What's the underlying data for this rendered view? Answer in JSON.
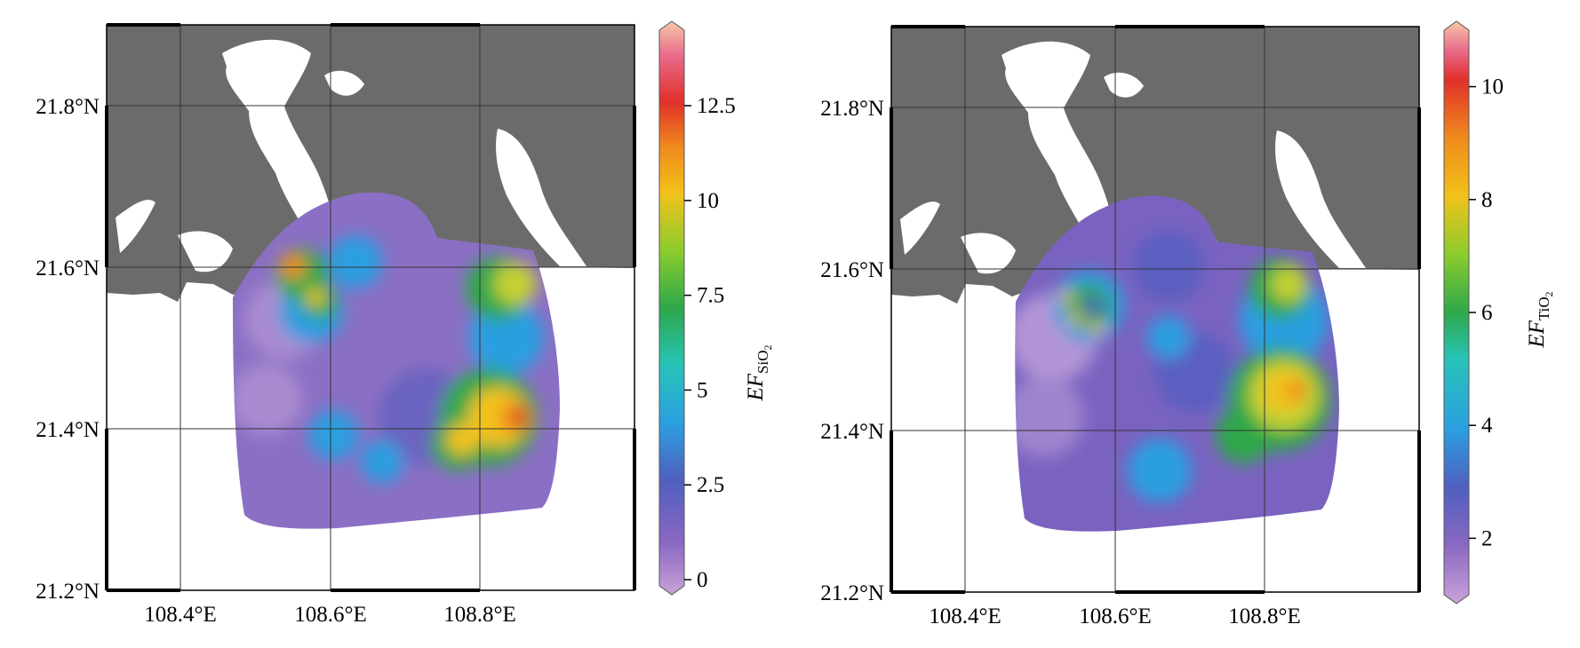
{
  "panels": [
    {
      "id": "left",
      "colorbar": {
        "label_main": "EF",
        "label_sub": "SiO",
        "label_subsub": "2",
        "ticks": [
          "0",
          "2.5",
          "5",
          "7.5",
          "10",
          "12.5"
        ],
        "tick_values": [
          0,
          2.5,
          5,
          7.5,
          10,
          12.5
        ],
        "range": [
          0,
          14
        ]
      },
      "lat_labels": [
        "21.8°N",
        "21.6°N",
        "21.4°N",
        "21.2°N"
      ],
      "lon_labels": [
        "108.4°E",
        "108.6°E",
        "108.8°E"
      ]
    },
    {
      "id": "right",
      "colorbar": {
        "label_main": "EF",
        "label_sub": "TiO",
        "label_subsub": "2",
        "ticks": [
          "2",
          "4",
          "6",
          "8",
          "10"
        ],
        "tick_values": [
          2,
          4,
          6,
          8,
          10
        ],
        "range": [
          1,
          11
        ]
      },
      "lat_labels": [
        "21.8°N",
        "21.6°N",
        "21.4°N",
        "21.2°N"
      ],
      "lon_labels": [
        "108.4°E",
        "108.6°E",
        "108.8°E"
      ]
    }
  ],
  "colors": {
    "land": "#6b6b6b",
    "sea": "#ffffff",
    "scale": [
      "#c9a3d9",
      "#8a68c2",
      "#4f5fbf",
      "#2b9fe0",
      "#27c3b8",
      "#2ea84a",
      "#8ccc2c",
      "#f2c21a",
      "#f08a1c",
      "#e0302a",
      "#e86a8a",
      "#f6c8a8"
    ]
  }
}
